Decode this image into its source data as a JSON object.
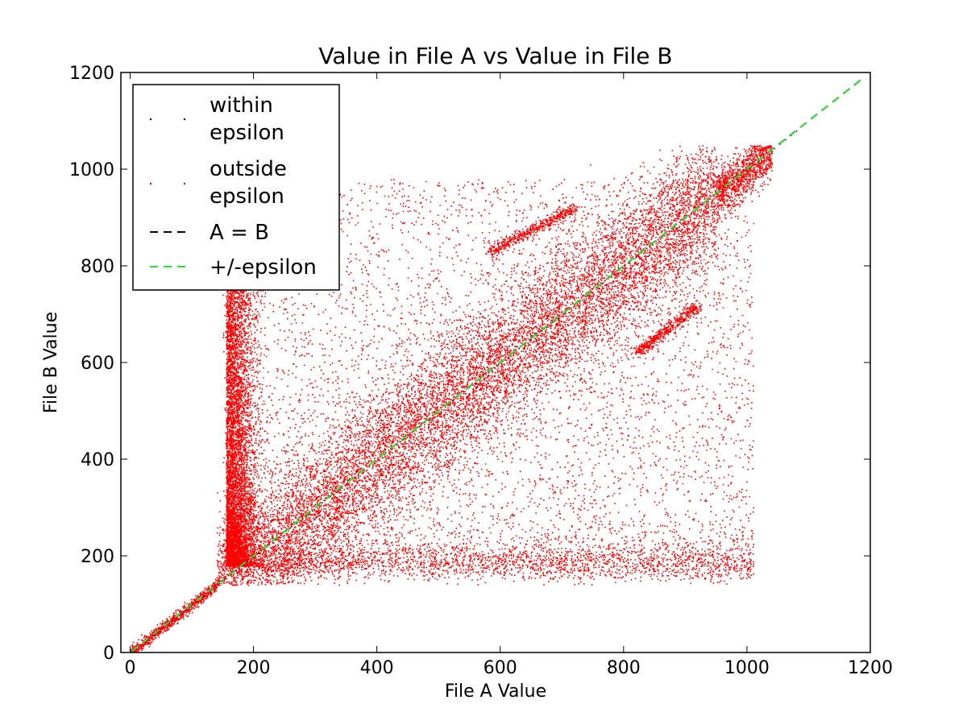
{
  "chart_data": {
    "type": "scatter",
    "title": "Value in File A vs Value in File B",
    "xlabel": "File A Value",
    "ylabel": "File B Value",
    "xlim": [
      -15,
      1200
    ],
    "ylim": [
      0,
      1200
    ],
    "xticks": [
      0,
      200,
      400,
      600,
      800,
      1000,
      1200
    ],
    "yticks": [
      0,
      200,
      400,
      600,
      800,
      1000,
      1200
    ],
    "grid": false,
    "legend_position": "top-left",
    "colors": {
      "within": "#000080",
      "outside": "#ff0000",
      "identity": "#000000",
      "epsilon": "#33dd33"
    },
    "legend": [
      {
        "label_lines": [
          "within",
          "epsilon"
        ],
        "marker": "point",
        "color": "#000080"
      },
      {
        "label_lines": [
          "outside",
          "epsilon"
        ],
        "marker": "point",
        "color": "#ff0000"
      },
      {
        "label_lines": [
          "A = B"
        ],
        "marker": "dashed-line",
        "color": "#000000"
      },
      {
        "label_lines": [
          "+/-epsilon"
        ],
        "marker": "dashed-line",
        "color": "#33dd33"
      }
    ],
    "series": [
      {
        "name": "within epsilon",
        "points_description": "points lying on the A = B diagonal, x from 0 to about 1085"
      },
      {
        "name": "outside epsilon",
        "clusters": [
          {
            "kind": "diagonal_band",
            "x_range": [
              140,
              1085
            ],
            "half_width": 90,
            "density": "very high"
          },
          {
            "kind": "low_band",
            "x_range": [
              150,
              1010
            ],
            "y_range": [
              150,
              240
            ],
            "density": "high"
          },
          {
            "kind": "left_column",
            "x_range": [
              150,
              205
            ],
            "y_range": [
              180,
              850
            ],
            "density": "high"
          },
          {
            "kind": "diffuse",
            "x_range": [
              140,
              1020
            ],
            "y_range": [
              150,
              1000
            ],
            "density": "medium"
          },
          {
            "kind": "upper_streak",
            "x_range": [
              580,
              720
            ],
            "y_range": [
              830,
              920
            ]
          },
          {
            "kind": "lower_streak",
            "x_range": [
              820,
              920
            ],
            "y_range": [
              620,
              720
            ]
          }
        ]
      }
    ],
    "reference_lines": [
      {
        "name": "A = B",
        "x": [
          -15,
          1190
        ],
        "y": [
          -15,
          1190
        ]
      },
      {
        "name": "+/-epsilon",
        "x": [
          -15,
          1190
        ],
        "y": [
          -15,
          1190
        ]
      }
    ]
  }
}
